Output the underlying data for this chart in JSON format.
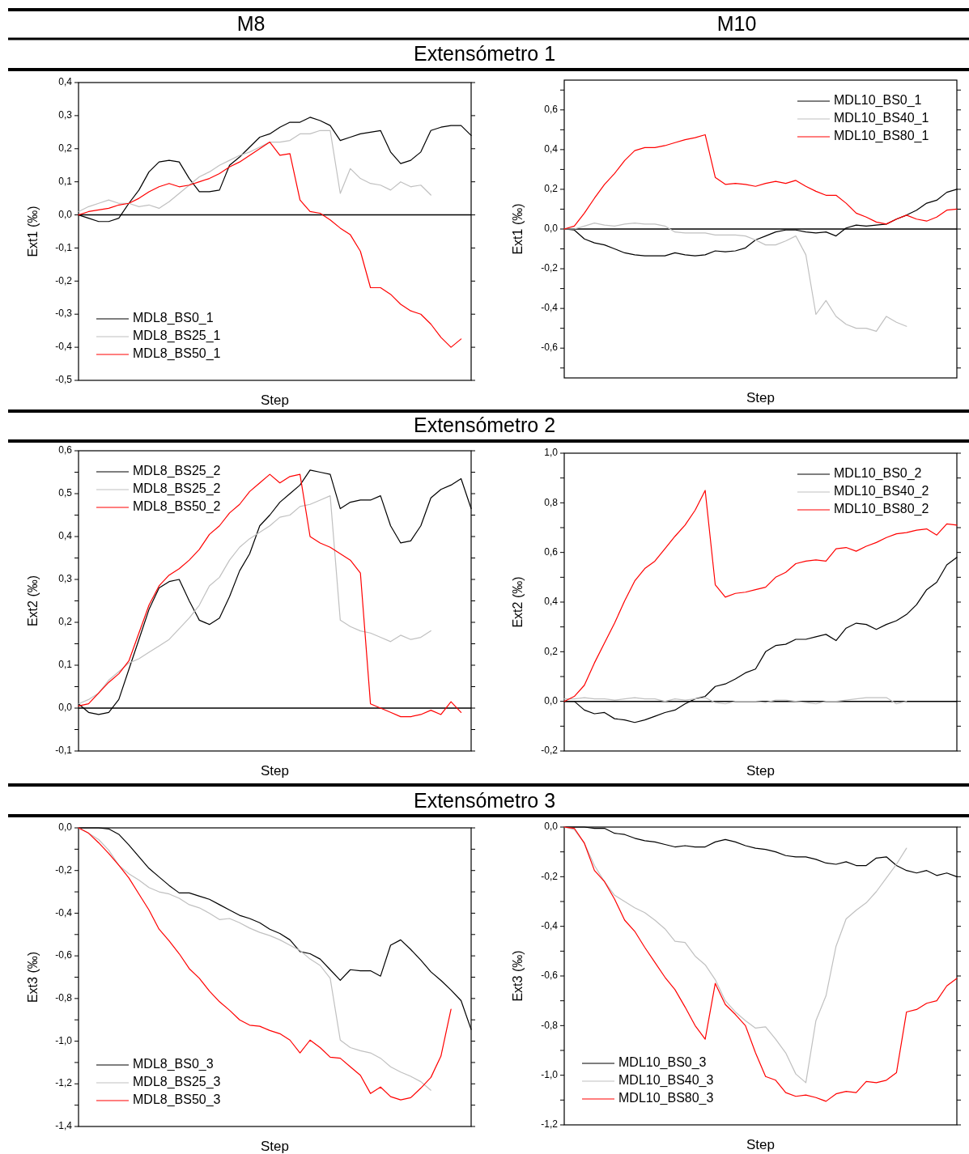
{
  "chart_data": [
    {
      "type": "line",
      "title": "Extensómetro 1",
      "annotations": [
        "M8"
      ],
      "xlabel": "Step",
      "ylabel": "Ext1 (‰)",
      "tick_labels": "y",
      "legend": "bottom left",
      "categories": [
        null,
        null,
        null,
        null,
        null,
        null,
        null,
        null,
        null,
        null,
        null,
        null,
        null,
        null,
        null,
        null,
        null,
        null,
        null,
        null,
        null,
        null,
        null,
        null,
        null,
        null,
        null,
        null,
        null,
        null,
        null,
        null,
        null,
        null,
        null,
        null,
        null,
        null,
        null,
        null
      ],
      "ylim": [
        -0.5,
        0.4
      ],
      "yticks": [
        {
          "value": -0.5,
          "label": "-0,5"
        },
        {
          "value": -0.4,
          "label": "-0,4"
        },
        {
          "value": -0.3,
          "label": "-0,3"
        },
        {
          "value": -0.2,
          "label": "-0,2"
        },
        {
          "value": -0.1,
          "label": "-0,1"
        },
        {
          "value": 0,
          "label": "0,0"
        },
        {
          "value": 0.1,
          "label": "0,1"
        },
        {
          "value": 0.2,
          "label": "0,2"
        },
        {
          "value": 0.3,
          "label": "0,3"
        },
        {
          "value": 0.4,
          "label": "0,4"
        }
      ],
      "ref_lines": [
        {
          "axis": "y",
          "value": 0,
          "color": "#000000"
        }
      ],
      "series": [
        {
          "name": "MDL8_BS0_1",
          "color": "#000000",
          "values": [
            0,
            -0.01,
            -0.02,
            -0.02,
            -0.01,
            0.035,
            0.075,
            0.13,
            0.16,
            0.165,
            0.16,
            0.11,
            0.07,
            0.07,
            0.075,
            0.15,
            0.175,
            0.205,
            0.235,
            0.245,
            0.265,
            0.28,
            0.28,
            0.295,
            0.285,
            0.27,
            0.225,
            0.235,
            0.245,
            0.25,
            0.255,
            0.19,
            0.155,
            0.165,
            0.19,
            0.255,
            0.265,
            0.27,
            0.27,
            0.24
          ]
        },
        {
          "name": "MDL8_BS25_1",
          "color": "#c0c0c0",
          "values": [
            0.01,
            0.025,
            0.035,
            0.045,
            0.035,
            0.035,
            0.025,
            0.03,
            0.02,
            0.04,
            0.065,
            0.09,
            0.115,
            0.13,
            0.15,
            0.165,
            0.18,
            0.19,
            0.205,
            0.22,
            0.22,
            0.225,
            0.245,
            0.245,
            0.255,
            0.255,
            0.065,
            0.14,
            0.11,
            0.095,
            0.09,
            0.075,
            0.1,
            0.085,
            0.09,
            0.06,
            null,
            null,
            null,
            null
          ]
        },
        {
          "name": "MDL8_BS50_1",
          "color": "#ff0000",
          "values": [
            0,
            0.01,
            0.015,
            0.02,
            0.03,
            0.035,
            0.05,
            0.07,
            0.085,
            0.095,
            0.085,
            0.09,
            0.1,
            0.11,
            0.125,
            0.145,
            0.16,
            0.18,
            0.2,
            0.22,
            0.18,
            0.185,
            0.045,
            0.01,
            0.005,
            -0.015,
            -0.04,
            -0.06,
            -0.11,
            -0.22,
            -0.22,
            -0.24,
            -0.27,
            -0.29,
            -0.3,
            -0.33,
            -0.37,
            -0.4,
            -0.375,
            null
          ]
        }
      ]
    },
    {
      "type": "line",
      "annotations": [
        "M10"
      ],
      "xlabel": "Step",
      "ylabel": "Ext1 (‰)",
      "tick_labels": "y",
      "legend": "top right",
      "categories": [
        null,
        null,
        null,
        null,
        null,
        null,
        null,
        null,
        null,
        null,
        null,
        null,
        null,
        null,
        null,
        null,
        null,
        null,
        null,
        null,
        null,
        null,
        null,
        null,
        null,
        null,
        null,
        null,
        null,
        null,
        null,
        null,
        null,
        null,
        null,
        null,
        null,
        null,
        null,
        null
      ],
      "ylim": [
        -0.75,
        0.75
      ],
      "yticks": [
        {
          "value": -0.7,
          "label": null
        },
        {
          "value": -0.6,
          "label": "-0,6"
        },
        {
          "value": -0.5,
          "label": null
        },
        {
          "value": -0.4,
          "label": "-0,4"
        },
        {
          "value": -0.3,
          "label": null
        },
        {
          "value": -0.2,
          "label": "-0,2"
        },
        {
          "value": -0.1,
          "label": null
        },
        {
          "value": 0,
          "label": "0,0"
        },
        {
          "value": 0.1,
          "label": null
        },
        {
          "value": 0.2,
          "label": "0,2"
        },
        {
          "value": 0.3,
          "label": null
        },
        {
          "value": 0.4,
          "label": "0,4"
        },
        {
          "value": 0.5,
          "label": null
        },
        {
          "value": 0.6,
          "label": "0,6"
        },
        {
          "value": 0.7,
          "label": null
        }
      ],
      "ref_lines": [
        {
          "axis": "y",
          "value": 0,
          "color": "#000000"
        }
      ],
      "series": [
        {
          "name": "MDL10_BS0_1",
          "color": "#000000",
          "values": [
            0,
            -0.005,
            -0.05,
            -0.07,
            -0.08,
            -0.1,
            -0.12,
            -0.13,
            -0.135,
            -0.135,
            -0.135,
            -0.12,
            -0.13,
            -0.135,
            -0.13,
            -0.11,
            -0.115,
            -0.11,
            -0.095,
            -0.055,
            -0.035,
            -0.015,
            -0.005,
            -0.005,
            -0.015,
            -0.02,
            -0.015,
            -0.035,
            0.005,
            0.02,
            0.015,
            0.02,
            0.025,
            0.05,
            0.07,
            0.095,
            0.13,
            0.145,
            0.185,
            0.2
          ]
        },
        {
          "name": "MDL10_BS40_1",
          "color": "#c0c0c0",
          "values": [
            0,
            0,
            0.015,
            0.03,
            0.02,
            0.015,
            0.025,
            0.03,
            0.025,
            0.025,
            0.015,
            -0.015,
            -0.02,
            -0.02,
            -0.02,
            -0.03,
            -0.03,
            -0.03,
            -0.035,
            -0.055,
            -0.08,
            -0.08,
            -0.06,
            -0.035,
            -0.13,
            -0.43,
            -0.36,
            -0.44,
            -0.48,
            -0.5,
            -0.5,
            -0.515,
            -0.44,
            -0.47,
            -0.49,
            null,
            null,
            null,
            null,
            null
          ]
        },
        {
          "name": "MDL10_BS80_1",
          "color": "#ff0000",
          "values": [
            0,
            0.015,
            0.08,
            0.155,
            0.225,
            0.28,
            0.345,
            0.395,
            0.41,
            0.41,
            0.42,
            0.435,
            0.45,
            0.46,
            0.475,
            0.26,
            0.225,
            0.23,
            0.225,
            0.215,
            0.23,
            0.24,
            0.23,
            0.245,
            0.215,
            0.19,
            0.17,
            0.17,
            0.13,
            0.08,
            0.06,
            0.035,
            0.025,
            0.05,
            0.07,
            0.05,
            0.04,
            0.06,
            0.095,
            0.1
          ]
        }
      ]
    },
    {
      "type": "line",
      "title": "Extensómetro 2",
      "xlabel": "Step",
      "ylabel": "Ext2 (‰)",
      "tick_labels": "y",
      "legend": "top left",
      "categories": [
        null,
        null,
        null,
        null,
        null,
        null,
        null,
        null,
        null,
        null,
        null,
        null,
        null,
        null,
        null,
        null,
        null,
        null,
        null,
        null,
        null,
        null,
        null,
        null,
        null,
        null,
        null,
        null,
        null,
        null,
        null,
        null,
        null,
        null,
        null,
        null,
        null,
        null,
        null,
        null
      ],
      "ylim": [
        -0.1,
        0.6
      ],
      "yticks": [
        {
          "value": -0.1,
          "label": "-0,1"
        },
        {
          "value": -0.05,
          "label": null
        },
        {
          "value": 0,
          "label": "0,0"
        },
        {
          "value": 0.05,
          "label": null
        },
        {
          "value": 0.1,
          "label": "0,1"
        },
        {
          "value": 0.15,
          "label": null
        },
        {
          "value": 0.2,
          "label": "0,2"
        },
        {
          "value": 0.25,
          "label": null
        },
        {
          "value": 0.3,
          "label": "0,3"
        },
        {
          "value": 0.35,
          "label": null
        },
        {
          "value": 0.4,
          "label": "0,4"
        },
        {
          "value": 0.45,
          "label": null
        },
        {
          "value": 0.5,
          "label": "0,5"
        },
        {
          "value": 0.55,
          "label": null
        },
        {
          "value": 0.6,
          "label": "0,6"
        }
      ],
      "ref_lines": [
        {
          "axis": "y",
          "value": 0,
          "color": "#000000"
        }
      ],
      "series": [
        {
          "name": "MDL8_BS25_2",
          "color": "#000000",
          "values": [
            0.01,
            -0.01,
            -0.015,
            -0.01,
            0.02,
            0.09,
            0.16,
            0.23,
            0.28,
            0.295,
            0.3,
            0.25,
            0.205,
            0.195,
            0.21,
            0.26,
            0.32,
            0.36,
            0.425,
            0.45,
            0.48,
            0.5,
            0.52,
            0.555,
            0.55,
            0.545,
            0.465,
            0.48,
            0.485,
            0.485,
            0.495,
            0.425,
            0.385,
            0.39,
            0.425,
            0.49,
            0.51,
            0.52,
            0.535,
            0.465
          ]
        },
        {
          "name": "MDL8_BS25_2",
          "color": "#c0c0c0",
          "values": [
            0.01,
            0.02,
            0.035,
            0.065,
            0.085,
            0.105,
            0.115,
            0.13,
            0.145,
            0.16,
            0.185,
            0.21,
            0.24,
            0.285,
            0.305,
            0.345,
            0.375,
            0.395,
            0.41,
            0.425,
            0.445,
            0.45,
            0.47,
            0.475,
            0.485,
            0.495,
            0.205,
            0.19,
            0.18,
            0.175,
            0.165,
            0.155,
            0.17,
            0.16,
            0.165,
            0.18,
            null,
            null,
            null,
            null
          ]
        },
        {
          "name": "MDL8_BS50_2",
          "color": "#ff0000",
          "values": [
            0.005,
            0.01,
            0.035,
            0.06,
            0.08,
            0.11,
            0.175,
            0.24,
            0.285,
            0.31,
            0.325,
            0.345,
            0.37,
            0.405,
            0.425,
            0.455,
            0.475,
            0.505,
            0.525,
            0.545,
            0.525,
            0.54,
            0.545,
            0.4,
            0.385,
            0.375,
            0.36,
            0.345,
            0.315,
            0.01,
            0,
            -0.01,
            -0.02,
            -0.02,
            -0.015,
            -0.005,
            -0.015,
            0.015,
            -0.01,
            null
          ]
        }
      ]
    },
    {
      "type": "line",
      "xlabel": "Step",
      "ylabel": "Ext2 (‰)",
      "tick_labels": "y",
      "legend": "top right",
      "categories": [
        null,
        null,
        null,
        null,
        null,
        null,
        null,
        null,
        null,
        null,
        null,
        null,
        null,
        null,
        null,
        null,
        null,
        null,
        null,
        null,
        null,
        null,
        null,
        null,
        null,
        null,
        null,
        null,
        null,
        null,
        null,
        null,
        null,
        null,
        null,
        null,
        null,
        null,
        null,
        null
      ],
      "ylim": [
        -0.2,
        1.0
      ],
      "yticks": [
        {
          "value": -0.2,
          "label": "-0,2"
        },
        {
          "value": -0.1,
          "label": null
        },
        {
          "value": 0,
          "label": "0,0"
        },
        {
          "value": 0.1,
          "label": null
        },
        {
          "value": 0.2,
          "label": "0,2"
        },
        {
          "value": 0.3,
          "label": null
        },
        {
          "value": 0.4,
          "label": "0,4"
        },
        {
          "value": 0.5,
          "label": null
        },
        {
          "value": 0.6,
          "label": "0,6"
        },
        {
          "value": 0.7,
          "label": null
        },
        {
          "value": 0.8,
          "label": "0,8"
        },
        {
          "value": 0.9,
          "label": null
        },
        {
          "value": 1.0,
          "label": "1,0"
        }
      ],
      "ref_lines": [
        {
          "axis": "y",
          "value": 0,
          "color": "#000000"
        }
      ],
      "series": [
        {
          "name": "MDL10_BS0_2",
          "color": "#000000",
          "values": [
            0,
            0,
            -0.035,
            -0.05,
            -0.045,
            -0.07,
            -0.075,
            -0.085,
            -0.075,
            -0.06,
            -0.045,
            -0.035,
            -0.01,
            0.01,
            0.02,
            0.06,
            0.07,
            0.09,
            0.115,
            0.13,
            0.2,
            0.225,
            0.23,
            0.25,
            0.25,
            0.26,
            0.27,
            0.245,
            0.295,
            0.315,
            0.31,
            0.29,
            0.31,
            0.325,
            0.35,
            0.39,
            0.45,
            0.48,
            0.55,
            0.58
          ]
        },
        {
          "name": "MDL10_BS40_2",
          "color": "#c0c0c0",
          "values": [
            0.01,
            0.01,
            0.015,
            0.01,
            0.01,
            0.005,
            0.01,
            0.015,
            0.01,
            0.01,
            0,
            0.01,
            0.005,
            0.01,
            0.015,
            -0.005,
            -0.01,
            0,
            0,
            0,
            -0.005,
            0.005,
            0.005,
            0,
            -0.005,
            -0.01,
            0,
            0,
            0.005,
            0.01,
            0.015,
            0.015,
            0.015,
            -0.01,
            0,
            null,
            null,
            null,
            null,
            null
          ]
        },
        {
          "name": "MDL10_BS80_2",
          "color": "#ff0000",
          "values": [
            0,
            0.02,
            0.065,
            0.155,
            0.235,
            0.315,
            0.405,
            0.485,
            0.535,
            0.565,
            0.615,
            0.665,
            0.71,
            0.77,
            0.85,
            0.47,
            0.42,
            0.435,
            0.44,
            0.45,
            0.46,
            0.5,
            0.52,
            0.555,
            0.565,
            0.57,
            0.565,
            0.615,
            0.62,
            0.605,
            0.625,
            0.64,
            0.66,
            0.675,
            0.68,
            0.69,
            0.695,
            0.67,
            0.715,
            0.71
          ]
        }
      ]
    },
    {
      "type": "line",
      "title": "Extensómetro 3",
      "xlabel": "Step",
      "ylabel": "Ext3 (‰)",
      "tick_labels": "y",
      "legend": "bottom left",
      "categories": [
        null,
        null,
        null,
        null,
        null,
        null,
        null,
        null,
        null,
        null,
        null,
        null,
        null,
        null,
        null,
        null,
        null,
        null,
        null,
        null,
        null,
        null,
        null,
        null,
        null,
        null,
        null,
        null,
        null,
        null,
        null,
        null,
        null,
        null,
        null,
        null,
        null,
        null,
        null,
        null
      ],
      "ylim": [
        -1.4,
        0
      ],
      "yticks": [
        {
          "value": -1.4,
          "label": "-1,4"
        },
        {
          "value": -1.3,
          "label": null
        },
        {
          "value": -1.2,
          "label": "-1,2"
        },
        {
          "value": -1.1,
          "label": null
        },
        {
          "value": -1.0,
          "label": "-1,0"
        },
        {
          "value": -0.9,
          "label": null
        },
        {
          "value": -0.8,
          "label": "-0,8"
        },
        {
          "value": -0.7,
          "label": null
        },
        {
          "value": -0.6,
          "label": "-0,6"
        },
        {
          "value": -0.5,
          "label": null
        },
        {
          "value": -0.4,
          "label": "-0,4"
        },
        {
          "value": -0.3,
          "label": null
        },
        {
          "value": -0.2,
          "label": "-0,2"
        },
        {
          "value": -0.1,
          "label": null
        },
        {
          "value": 0,
          "label": "0,0"
        }
      ],
      "series": [
        {
          "name": "MDL8_BS0_3",
          "color": "#000000",
          "values": [
            0,
            0,
            0,
            -0.005,
            -0.03,
            -0.08,
            -0.135,
            -0.19,
            -0.23,
            -0.27,
            -0.305,
            -0.305,
            -0.32,
            -0.335,
            -0.36,
            -0.385,
            -0.41,
            -0.425,
            -0.445,
            -0.475,
            -0.495,
            -0.525,
            -0.58,
            -0.59,
            -0.615,
            -0.665,
            -0.715,
            -0.665,
            -0.67,
            -0.67,
            -0.695,
            -0.55,
            -0.525,
            -0.57,
            -0.62,
            -0.675,
            -0.715,
            -0.76,
            -0.81,
            -0.945
          ]
        },
        {
          "name": "MDL8_BS25_3",
          "color": "#c0c0c0",
          "values": [
            0,
            -0.025,
            -0.055,
            -0.105,
            -0.175,
            -0.215,
            -0.245,
            -0.28,
            -0.3,
            -0.31,
            -0.33,
            -0.36,
            -0.375,
            -0.4,
            -0.43,
            -0.425,
            -0.445,
            -0.47,
            -0.49,
            -0.505,
            -0.525,
            -0.55,
            -0.575,
            -0.615,
            -0.645,
            -0.705,
            -0.995,
            -1.03,
            -1.045,
            -1.055,
            -1.08,
            -1.12,
            -1.145,
            -1.165,
            -1.19,
            -1.23,
            null,
            null,
            null,
            null
          ]
        },
        {
          "name": "MDL8_BS50_3",
          "color": "#ff0000",
          "values": [
            0,
            -0.025,
            -0.07,
            -0.12,
            -0.175,
            -0.235,
            -0.31,
            -0.385,
            -0.475,
            -0.53,
            -0.59,
            -0.66,
            -0.705,
            -0.765,
            -0.815,
            -0.855,
            -0.9,
            -0.925,
            -0.93,
            -0.95,
            -0.965,
            -0.995,
            -1.055,
            -0.995,
            -1.03,
            -1.075,
            -1.08,
            -1.12,
            -1.16,
            -1.245,
            -1.215,
            -1.26,
            -1.275,
            -1.265,
            -1.22,
            -1.17,
            -1.07,
            -0.85,
            null,
            null
          ]
        }
      ]
    },
    {
      "type": "line",
      "xlabel": "Step",
      "ylabel": "Ext3 (‰)",
      "tick_labels": "y",
      "legend": "bottom left",
      "categories": [
        null,
        null,
        null,
        null,
        null,
        null,
        null,
        null,
        null,
        null,
        null,
        null,
        null,
        null,
        null,
        null,
        null,
        null,
        null,
        null,
        null,
        null,
        null,
        null,
        null,
        null,
        null,
        null,
        null,
        null,
        null,
        null,
        null,
        null,
        null,
        null,
        null,
        null,
        null,
        null
      ],
      "ylim": [
        -1.2,
        0
      ],
      "yticks": [
        {
          "value": -1.2,
          "label": "-1,2"
        },
        {
          "value": -1.1,
          "label": null
        },
        {
          "value": -1.0,
          "label": "-1,0"
        },
        {
          "value": -0.9,
          "label": null
        },
        {
          "value": -0.8,
          "label": "-0,8"
        },
        {
          "value": -0.7,
          "label": null
        },
        {
          "value": -0.6,
          "label": "-0,6"
        },
        {
          "value": -0.5,
          "label": null
        },
        {
          "value": -0.4,
          "label": "-0,4"
        },
        {
          "value": -0.3,
          "label": null
        },
        {
          "value": -0.2,
          "label": "-0,2"
        },
        {
          "value": -0.1,
          "label": null
        },
        {
          "value": 0,
          "label": "0,0"
        }
      ],
      "series": [
        {
          "name": "MDL10_BS0_3",
          "color": "#000000",
          "values": [
            0,
            0,
            0,
            -0.005,
            -0.005,
            -0.025,
            -0.03,
            -0.045,
            -0.055,
            -0.06,
            -0.07,
            -0.08,
            -0.075,
            -0.08,
            -0.08,
            -0.06,
            -0.05,
            -0.06,
            -0.075,
            -0.085,
            -0.09,
            -0.1,
            -0.115,
            -0.12,
            -0.12,
            -0.13,
            -0.145,
            -0.15,
            -0.14,
            -0.155,
            -0.155,
            -0.125,
            -0.12,
            -0.155,
            -0.175,
            -0.185,
            -0.175,
            -0.195,
            -0.185,
            -0.2
          ]
        },
        {
          "name": "MDL10_BS40_3",
          "color": "#c0c0c0",
          "values": [
            0,
            -0.01,
            -0.065,
            -0.155,
            -0.22,
            -0.275,
            -0.3,
            -0.325,
            -0.345,
            -0.375,
            -0.41,
            -0.46,
            -0.465,
            -0.52,
            -0.555,
            -0.615,
            -0.7,
            -0.745,
            -0.78,
            -0.81,
            -0.805,
            -0.855,
            -0.91,
            -0.995,
            -1.03,
            -0.78,
            -0.68,
            -0.48,
            -0.37,
            -0.335,
            -0.305,
            -0.26,
            -0.205,
            -0.15,
            -0.085,
            null,
            null,
            null,
            null,
            null
          ]
        },
        {
          "name": "MDL10_BS80_3",
          "color": "#ff0000",
          "values": [
            0,
            -0.005,
            -0.065,
            -0.175,
            -0.22,
            -0.29,
            -0.375,
            -0.42,
            -0.485,
            -0.545,
            -0.605,
            -0.655,
            -0.725,
            -0.8,
            -0.855,
            -0.63,
            -0.715,
            -0.755,
            -0.8,
            -0.91,
            -1.005,
            -1.02,
            -1.07,
            -1.085,
            -1.08,
            -1.09,
            -1.105,
            -1.075,
            -1.065,
            -1.07,
            -1.025,
            -1.03,
            -1.02,
            -0.99,
            -0.745,
            -0.735,
            -0.71,
            -0.7,
            -0.64,
            -0.61
          ]
        }
      ]
    }
  ]
}
